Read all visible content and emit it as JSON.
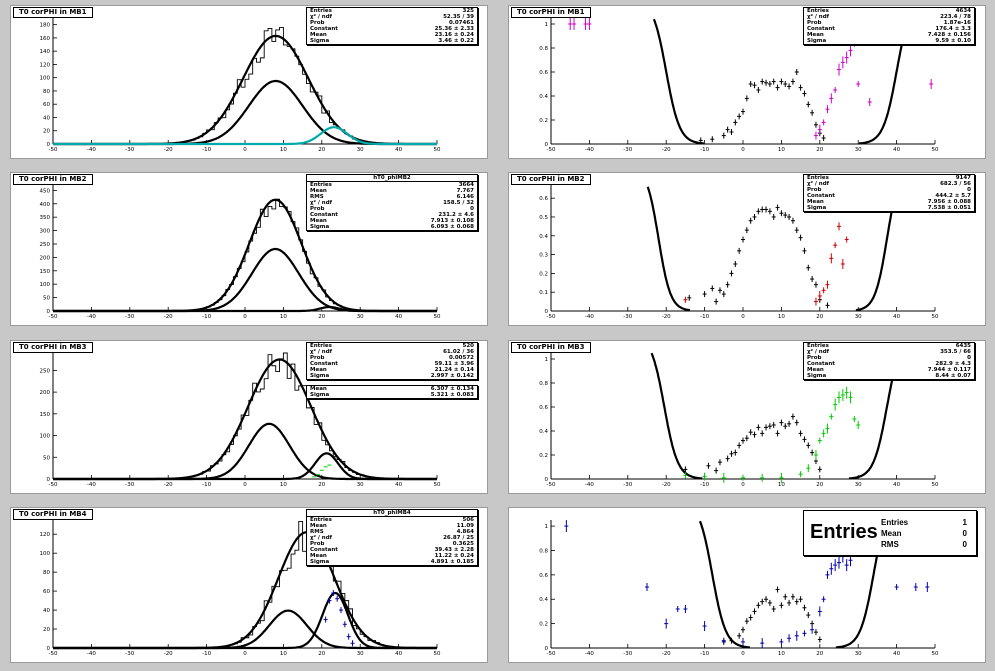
{
  "colors": {
    "background": "#c8c8c8",
    "pad": "#ffffff",
    "axis": "#000000",
    "fit": "#000000",
    "MB1": "#cc00cc",
    "MB2": "#cc0000",
    "MB3": "#00cc00",
    "MB4": "#0000aa",
    "cyan": "#00aaaa"
  },
  "left_pads": [
    {
      "title": "T0 corPHI in MB1",
      "stats": [
        [
          "Entries",
          "325"
        ],
        [
          "χ² / ndf",
          "52.35 / 39"
        ],
        [
          "Prob",
          "0.07461"
        ],
        [
          "Constant",
          "25.36 ± 2.33"
        ],
        [
          "Mean",
          "23.16 ± 0.24"
        ],
        [
          "Sigma",
          "3.46 ± 0.22"
        ]
      ]
    },
    {
      "title": "T0 corPHI in MB2",
      "stats_name": "hT0_phiMB2",
      "stats": [
        [
          "Entries",
          "3664"
        ],
        [
          "Mean",
          "7.767"
        ],
        [
          "RMS",
          "6.146"
        ],
        [
          "χ² / ndf",
          "158.5 / 32"
        ],
        [
          "Prob",
          "0"
        ],
        [
          "Constant",
          "231.2 ± 4.6"
        ],
        [
          "Mean",
          "7.913 ± 0.108"
        ],
        [
          "Sigma",
          "6.093 ± 0.068"
        ]
      ]
    },
    {
      "title": "T0 corPHI in MB3",
      "stats": [
        [
          "Entries",
          "520"
        ],
        [
          "χ² / ndf",
          "61.02 / 36"
        ],
        [
          "Prob",
          "0.00572"
        ],
        [
          "Constant",
          "59.11 ± 3.96"
        ],
        [
          "Mean",
          "21.24 ± 0.14"
        ],
        [
          "Sigma",
          "2.997 ± 0.142"
        ]
      ],
      "stats2": [
        [
          "Mean",
          "6.307 ± 0.134"
        ],
        [
          "Sigma",
          "5.321 ± 0.083"
        ]
      ]
    },
    {
      "title": "T0 corPHI in MB4",
      "stats_name": "hT0_phiMB4",
      "stats": [
        [
          "Entries",
          "506"
        ],
        [
          "Mean",
          "11.09"
        ],
        [
          "RMS",
          "4.864"
        ],
        [
          "χ² / ndf",
          "26.87 / 25"
        ],
        [
          "Prob",
          "0.3625"
        ],
        [
          "Constant",
          "39.43 ± 2.28"
        ],
        [
          "Mean",
          "11.22 ± 0.24"
        ],
        [
          "Sigma",
          "4.891 ± 0.185"
        ]
      ]
    }
  ],
  "right_pads": [
    {
      "title": "T0 corPHI in MB1",
      "stats": [
        [
          "Entries",
          "4634"
        ],
        [
          "χ² / ndf",
          "223.4 / 78"
        ],
        [
          "Prob",
          "1.87e-16"
        ],
        [
          "Constant",
          "176.4 ± 3.3"
        ],
        [
          "Mean",
          "7.428 ± 0.156"
        ],
        [
          "Sigma",
          "9.59 ± 0.10"
        ]
      ]
    },
    {
      "title": "T0 corPHI in MB2",
      "stats": [
        [
          "Entries",
          "9147"
        ],
        [
          "χ² / ndf",
          "682.3 / 56"
        ],
        [
          "Prob",
          "0"
        ],
        [
          "Constant",
          "444.2 ± 5.7"
        ],
        [
          "Mean",
          "7.956 ± 0.088"
        ],
        [
          "Sigma",
          "7.538 ± 0.051"
        ]
      ]
    },
    {
      "title": "T0 corPHI in MB3",
      "stats": [
        [
          "Entries",
          "6435"
        ],
        [
          "χ² / ndf",
          "353.5 / 66"
        ],
        [
          "Prob",
          "0"
        ],
        [
          "Constant",
          "282.9 ± 4.3"
        ],
        [
          "Mean",
          "7.944 ± 0.117"
        ],
        [
          "Sigma",
          "8.44 ± 0.07"
        ]
      ]
    },
    {
      "title": "",
      "big_title": "Entries",
      "stats": [
        [
          "Entries",
          "1"
        ],
        [
          "Mean",
          "0"
        ],
        [
          "RMS",
          "0"
        ]
      ]
    }
  ],
  "chart_data": [
    {
      "type": "histogram",
      "title": "T0 corPHI in MB1",
      "xlim": [
        -50,
        50
      ],
      "ylim": [
        0,
        190
      ],
      "yticks": [
        0,
        20,
        40,
        60,
        80,
        100,
        120,
        140,
        160,
        180
      ],
      "xticks": [
        -50,
        -40,
        -30,
        -20,
        -10,
        0,
        10,
        20,
        30,
        40,
        50
      ],
      "fits": [
        {
          "constant": 163,
          "mean": 8,
          "sigma": 8.5
        },
        {
          "constant": 95,
          "mean": 8,
          "sigma": 7
        },
        {
          "constant": 25.36,
          "mean": 23.16,
          "sigma": 3.46,
          "color": "#00aaaa"
        }
      ],
      "hist_noise": 0.14
    },
    {
      "type": "histogram",
      "title": "T0 corPHI in MB2",
      "xlim": [
        -50,
        50
      ],
      "ylim": [
        0,
        470
      ],
      "yticks": [
        0,
        50,
        100,
        150,
        200,
        250,
        300,
        350,
        400,
        450
      ],
      "xticks": [
        -50,
        -40,
        -30,
        -20,
        -10,
        0,
        10,
        20,
        30,
        40,
        50
      ],
      "fits": [
        {
          "constant": 415,
          "mean": 7.9,
          "sigma": 6.8
        },
        {
          "constant": 231.2,
          "mean": 7.913,
          "sigma": 6.093
        },
        {
          "constant": 15,
          "mean": 22,
          "sigma": 2.5
        }
      ],
      "hist_noise": 0.08
    },
    {
      "type": "histogram",
      "title": "T0 corPHI in MB3",
      "xlim": [
        -50,
        50
      ],
      "ylim": [
        0,
        290
      ],
      "yticks": [
        0,
        50,
        100,
        150,
        200,
        250
      ],
      "xticks": [
        -50,
        -40,
        -30,
        -20,
        -10,
        0,
        10,
        20,
        30,
        40,
        50
      ],
      "fits": [
        {
          "constant": 275,
          "mean": 9,
          "sigma": 8.2
        },
        {
          "constant": 127,
          "mean": 6.3,
          "sigma": 5.3
        },
        {
          "constant": 59.11,
          "mean": 21.24,
          "sigma": 2.997
        }
      ],
      "green_points": [
        [
          18,
          5
        ],
        [
          19,
          10
        ],
        [
          20,
          20
        ],
        [
          21,
          28
        ],
        [
          22,
          32
        ]
      ],
      "hist_noise": 0.14
    },
    {
      "type": "histogram",
      "title": "T0 corPHI in MB4",
      "xlim": [
        -50,
        50
      ],
      "ylim": [
        0,
        135
      ],
      "yticks": [
        0,
        20,
        40,
        60,
        80,
        100,
        120
      ],
      "xticks": [
        -50,
        -40,
        -30,
        -20,
        -10,
        0,
        10,
        20,
        30,
        40,
        50
      ],
      "fits": [
        {
          "constant": 122,
          "mean": 16,
          "sigma": 7.3
        },
        {
          "constant": 39.43,
          "mean": 11.22,
          "sigma": 4.891
        },
        {
          "constant": 58,
          "mean": 23.5,
          "sigma": 3.3
        }
      ],
      "blue_points": [
        [
          21,
          30
        ],
        [
          22,
          50
        ],
        [
          23,
          58
        ],
        [
          24,
          52
        ],
        [
          25,
          40
        ],
        [
          26,
          25
        ],
        [
          27,
          12
        ],
        [
          28,
          5
        ]
      ],
      "hist_noise": 0.2
    },
    {
      "type": "scatter",
      "title": "T0 corPHI in MB1",
      "xlim": [
        -50,
        50
      ],
      "ylim": [
        0,
        1.05
      ],
      "yticks": [
        0,
        0.2,
        0.4,
        0.6,
        0.8,
        1
      ],
      "xticks": [
        -50,
        -40,
        -30,
        -20,
        -10,
        0,
        10,
        20,
        30,
        40,
        50
      ],
      "curve": {
        "left_center": -20,
        "right_center": 40,
        "width": 2.8
      },
      "black": [
        [
          -11,
          0.03
        ],
        [
          -8,
          0.04
        ],
        [
          -5,
          0.07
        ],
        [
          -4,
          0.12
        ],
        [
          -3,
          0.1
        ],
        [
          -2,
          0.18
        ],
        [
          -1,
          0.23
        ],
        [
          0,
          0.27
        ],
        [
          1,
          0.38
        ],
        [
          2,
          0.5
        ],
        [
          3,
          0.49
        ],
        [
          4,
          0.45
        ],
        [
          5,
          0.52
        ],
        [
          6,
          0.51
        ],
        [
          7,
          0.5
        ],
        [
          8,
          0.52
        ],
        [
          9,
          0.47
        ],
        [
          10,
          0.52
        ],
        [
          11,
          0.5
        ],
        [
          12,
          0.48
        ],
        [
          13,
          0.52
        ],
        [
          14,
          0.6
        ],
        [
          15,
          0.47
        ],
        [
          16,
          0.42
        ],
        [
          17,
          0.33
        ],
        [
          18,
          0.26
        ],
        [
          19,
          0.16
        ],
        [
          20,
          0.09
        ],
        [
          21,
          0.05
        ]
      ],
      "colored": [
        [
          -45,
          1.0
        ],
        [
          -44,
          1.0
        ],
        [
          -41,
          1.0
        ],
        [
          -40,
          1.0
        ],
        [
          19,
          0.07
        ],
        [
          20,
          0.12
        ],
        [
          21,
          0.18
        ],
        [
          22,
          0.29
        ],
        [
          23,
          0.38
        ],
        [
          24,
          0.45
        ],
        [
          25,
          0.62
        ],
        [
          26,
          0.68
        ],
        [
          27,
          0.72
        ],
        [
          28,
          0.78
        ],
        [
          29,
          0.86
        ],
        [
          30,
          0.5
        ],
        [
          33,
          0.35
        ],
        [
          49,
          0.5
        ]
      ],
      "colored_color": "#cc00cc"
    },
    {
      "type": "scatter",
      "title": "T0 corPHI in MB2",
      "xlim": [
        -50,
        50
      ],
      "ylim": [
        0,
        0.67
      ],
      "yticks": [
        0,
        0.1,
        0.2,
        0.3,
        0.4,
        0.5,
        0.6
      ],
      "xticks": [
        -50,
        -40,
        -30,
        -20,
        -10,
        0,
        10,
        20,
        30,
        40,
        50
      ],
      "curve": {
        "left_center": -22,
        "right_center": 37.5,
        "width": 2.5
      },
      "black": [
        [
          -14,
          0.07
        ],
        [
          -10,
          0.09
        ],
        [
          -8,
          0.12
        ],
        [
          -7,
          0.05
        ],
        [
          -6,
          0.11
        ],
        [
          -5,
          0.09
        ],
        [
          -4,
          0.14
        ],
        [
          -3,
          0.2
        ],
        [
          -2,
          0.25
        ],
        [
          -1,
          0.32
        ],
        [
          0,
          0.38
        ],
        [
          1,
          0.43
        ],
        [
          2,
          0.48
        ],
        [
          3,
          0.5
        ],
        [
          4,
          0.53
        ],
        [
          5,
          0.54
        ],
        [
          6,
          0.54
        ],
        [
          7,
          0.53
        ],
        [
          8,
          0.5
        ],
        [
          9,
          0.55
        ],
        [
          10,
          0.52
        ],
        [
          11,
          0.51
        ],
        [
          12,
          0.5
        ],
        [
          13,
          0.48
        ],
        [
          14,
          0.43
        ],
        [
          15,
          0.39
        ],
        [
          16,
          0.32
        ],
        [
          17,
          0.23
        ],
        [
          18,
          0.17
        ],
        [
          19,
          0.14
        ],
        [
          20,
          0.06
        ],
        [
          22,
          0.03
        ]
      ],
      "colored": [
        [
          -15,
          0.06
        ],
        [
          19,
          0.05
        ],
        [
          20,
          0.08
        ],
        [
          21,
          0.11
        ],
        [
          22,
          0.14
        ],
        [
          23,
          0.28
        ],
        [
          24,
          0.35
        ],
        [
          25,
          0.45
        ],
        [
          26,
          0.25
        ],
        [
          27,
          0.38
        ]
      ],
      "colored_color": "#cc0000"
    },
    {
      "type": "scatter",
      "title": "T0 corPHI in MB3",
      "xlim": [
        -50,
        50
      ],
      "ylim": [
        0,
        1.05
      ],
      "yticks": [
        0,
        0.2,
        0.4,
        0.6,
        0.8,
        1
      ],
      "xticks": [
        -50,
        -40,
        -30,
        -20,
        -10,
        0,
        10,
        20,
        30,
        40,
        50
      ],
      "curve": {
        "left_center": -20.5,
        "right_center": 37.5,
        "width": 2.8
      },
      "black": [
        [
          -15,
          0.08
        ],
        [
          -9,
          0.11
        ],
        [
          -7,
          0.07
        ],
        [
          -6,
          0.14
        ],
        [
          -4,
          0.17
        ],
        [
          -3,
          0.21
        ],
        [
          -2,
          0.22
        ],
        [
          -1,
          0.28
        ],
        [
          0,
          0.32
        ],
        [
          1,
          0.34
        ],
        [
          2,
          0.39
        ],
        [
          3,
          0.37
        ],
        [
          4,
          0.43
        ],
        [
          5,
          0.38
        ],
        [
          6,
          0.43
        ],
        [
          7,
          0.44
        ],
        [
          8,
          0.45
        ],
        [
          9,
          0.38
        ],
        [
          10,
          0.47
        ],
        [
          11,
          0.44
        ],
        [
          12,
          0.46
        ],
        [
          13,
          0.52
        ],
        [
          14,
          0.47
        ],
        [
          15,
          0.38
        ],
        [
          16,
          0.33
        ],
        [
          17,
          0.28
        ],
        [
          18,
          0.22
        ],
        [
          19,
          0.15
        ],
        [
          20,
          0.08
        ]
      ],
      "colored": [
        [
          -15,
          0.03
        ],
        [
          -10,
          0.02
        ],
        [
          -5,
          0.01
        ],
        [
          0,
          0.01
        ],
        [
          5,
          0.01
        ],
        [
          10,
          0.01
        ],
        [
          15,
          0.04
        ],
        [
          17,
          0.09
        ],
        [
          19,
          0.2
        ],
        [
          20,
          0.32
        ],
        [
          21,
          0.38
        ],
        [
          22,
          0.42
        ],
        [
          23,
          0.52
        ],
        [
          24,
          0.62
        ],
        [
          25,
          0.68
        ],
        [
          26,
          0.7
        ],
        [
          27,
          0.72
        ],
        [
          28,
          0.68
        ],
        [
          29,
          0.5
        ],
        [
          30,
          0.45
        ]
      ],
      "colored_color": "#00cc00"
    },
    {
      "type": "scatter",
      "title": "",
      "xlim": [
        -50,
        50
      ],
      "ylim": [
        0,
        1.05
      ],
      "yticks": [
        0,
        0.2,
        0.4,
        0.6,
        0.8,
        1
      ],
      "xticks": [
        -50,
        -40,
        -30,
        -20,
        -10,
        0,
        10,
        20,
        30,
        40,
        50
      ],
      "curve": {
        "left_center": -8,
        "right_center": 34,
        "width": 2.8
      },
      "black": [
        [
          -5,
          0.05
        ],
        [
          -3,
          0.06
        ],
        [
          -1,
          0.1
        ],
        [
          0,
          0.15
        ],
        [
          1,
          0.22
        ],
        [
          2,
          0.25
        ],
        [
          3,
          0.3
        ],
        [
          4,
          0.35
        ],
        [
          5,
          0.38
        ],
        [
          6,
          0.4
        ],
        [
          7,
          0.37
        ],
        [
          8,
          0.32
        ],
        [
          9,
          0.48
        ],
        [
          10,
          0.35
        ],
        [
          11,
          0.42
        ],
        [
          12,
          0.37
        ],
        [
          13,
          0.42
        ],
        [
          14,
          0.38
        ],
        [
          15,
          0.4
        ],
        [
          16,
          0.33
        ],
        [
          17,
          0.27
        ],
        [
          18,
          0.2
        ],
        [
          19,
          0.13
        ],
        [
          20,
          0.07
        ]
      ],
      "colored": [
        [
          -46,
          1.0
        ],
        [
          -25,
          0.5
        ],
        [
          -20,
          0.2
        ],
        [
          -17,
          0.32
        ],
        [
          -15,
          0.32
        ],
        [
          -10,
          0.18
        ],
        [
          -5,
          0.06
        ],
        [
          0,
          0.05
        ],
        [
          5,
          0.04
        ],
        [
          10,
          0.05
        ],
        [
          12,
          0.08
        ],
        [
          14,
          0.1
        ],
        [
          16,
          0.12
        ],
        [
          18,
          0.15
        ],
        [
          20,
          0.3
        ],
        [
          21,
          0.4
        ],
        [
          22,
          0.6
        ],
        [
          23,
          0.65
        ],
        [
          24,
          0.68
        ],
        [
          25,
          0.7
        ],
        [
          26,
          0.75
        ],
        [
          27,
          0.68
        ],
        [
          28,
          0.72
        ],
        [
          30,
          0.9
        ],
        [
          40,
          0.5
        ],
        [
          45,
          0.5
        ],
        [
          48,
          0.5
        ]
      ],
      "colored_color": "#0000aa"
    }
  ]
}
